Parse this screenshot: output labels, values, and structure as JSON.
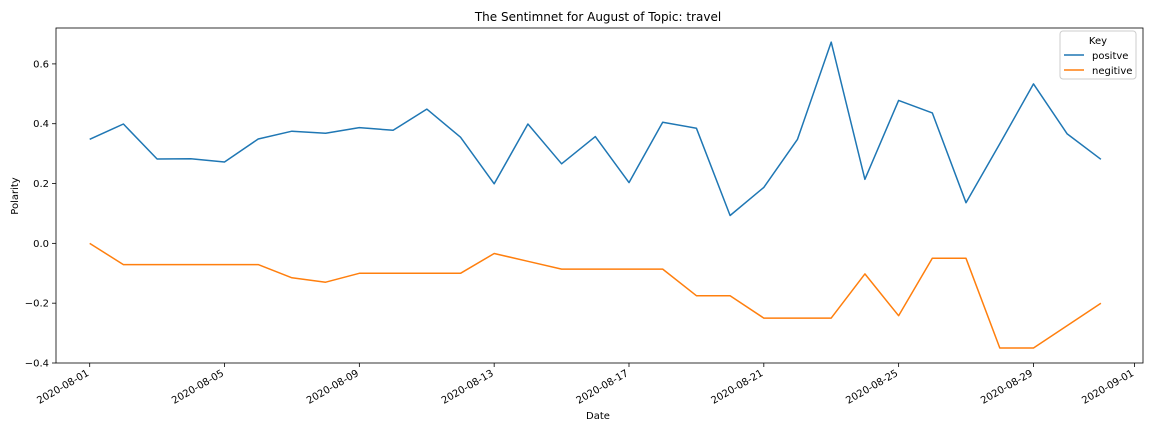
{
  "chart_data": {
    "type": "line",
    "title": "The Sentimnet for August of Topic: travel",
    "xlabel": "Date",
    "ylabel": "Polarity",
    "x": [
      "2020-08-01",
      "2020-08-02",
      "2020-08-03",
      "2020-08-04",
      "2020-08-05",
      "2020-08-06",
      "2020-08-07",
      "2020-08-08",
      "2020-08-09",
      "2020-08-10",
      "2020-08-11",
      "2020-08-12",
      "2020-08-13",
      "2020-08-14",
      "2020-08-15",
      "2020-08-16",
      "2020-08-17",
      "2020-08-18",
      "2020-08-19",
      "2020-08-20",
      "2020-08-21",
      "2020-08-22",
      "2020-08-23",
      "2020-08-24",
      "2020-08-25",
      "2020-08-26",
      "2020-08-27",
      "2020-08-28",
      "2020-08-29",
      "2020-08-30",
      "2020-08-31"
    ],
    "xlim": [
      "2020-07-31T00:00",
      "2020-09-01T06:00"
    ],
    "ylim": [
      -0.4,
      0.72
    ],
    "xticks": [
      "2020-08-01",
      "2020-08-05",
      "2020-08-09",
      "2020-08-13",
      "2020-08-17",
      "2020-08-21",
      "2020-08-25",
      "2020-08-29",
      "2020-09-01"
    ],
    "yticks": [
      -0.4,
      -0.2,
      0.0,
      0.2,
      0.4,
      0.6
    ],
    "ytick_labels": [
      "−0.4",
      "−0.2",
      "0.0",
      "0.2",
      "0.4",
      "0.6"
    ],
    "grid": false,
    "legend": {
      "title": "Key",
      "position": "top-right"
    },
    "series": [
      {
        "name": "positve",
        "color": "#1f77b4",
        "values": [
          0.348,
          0.399,
          0.282,
          0.283,
          0.272,
          0.349,
          0.375,
          0.368,
          0.387,
          0.378,
          0.449,
          0.355,
          0.199,
          0.399,
          0.266,
          0.357,
          0.203,
          0.405,
          0.385,
          0.093,
          0.187,
          0.348,
          0.673,
          0.214,
          0.478,
          0.436,
          0.136,
          0.333,
          0.533,
          0.366,
          0.281
        ]
      },
      {
        "name": "negitive",
        "color": "#ff7f0e",
        "values": [
          0.0,
          -0.071,
          -0.071,
          -0.071,
          -0.071,
          -0.071,
          -0.115,
          -0.13,
          -0.1,
          -0.1,
          -0.1,
          -0.1,
          -0.034,
          -0.06,
          -0.086,
          -0.086,
          -0.086,
          -0.086,
          -0.175,
          -0.175,
          -0.25,
          -0.25,
          -0.25,
          -0.102,
          -0.242,
          -0.05,
          -0.05,
          -0.35,
          -0.35,
          -0.275,
          -0.2
        ]
      }
    ]
  }
}
